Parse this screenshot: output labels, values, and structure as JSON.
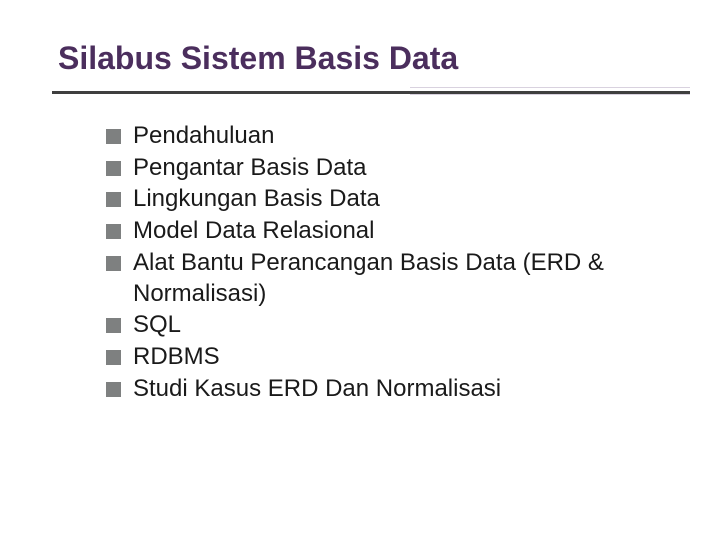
{
  "slide": {
    "title": "Silabus Sistem Basis Data",
    "title_color": "#4b2e5d",
    "title_fontsize": 32,
    "title_fontweight": 900,
    "underline_color_dark": "#3f3f3f",
    "underline_color_light": "#cfc6d6",
    "background_color": "#ffffff",
    "bullet_color": "#7e8080",
    "bullet_size": 15,
    "body_fontsize": 24,
    "body_color": "#1a1a1a",
    "items": [
      {
        "text": "Pendahuluan"
      },
      {
        "text": "Pengantar Basis Data"
      },
      {
        "text": "Lingkungan   Basis Data"
      },
      {
        "text": "Model Data Relasional"
      },
      {
        "text": "Alat Bantu Perancangan Basis Data (ERD & Normalisasi)"
      },
      {
        "text": "SQL"
      },
      {
        "text": "RDBMS"
      },
      {
        "text": "Studi Kasus ERD Dan Normalisasi"
      }
    ]
  }
}
